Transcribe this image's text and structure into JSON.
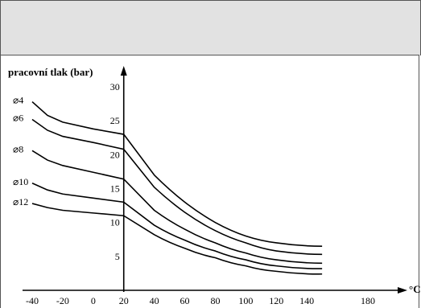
{
  "chart_data": {
    "type": "line",
    "ylabel": "pracovní tlak (bar)",
    "xlabel": "°C",
    "x_ticks": [
      -40,
      -20,
      0,
      20,
      40,
      60,
      80,
      100,
      120,
      140,
      180
    ],
    "y_ticks": [
      5,
      10,
      15,
      20,
      25,
      30
    ],
    "xlim": [
      -40,
      180
    ],
    "ylim": [
      0,
      30
    ],
    "series": [
      {
        "name": "⌀4",
        "points": [
          [
            -40,
            27.8
          ],
          [
            -30,
            25.8
          ],
          [
            -20,
            24.8
          ],
          [
            0,
            23.8
          ],
          [
            20,
            23.0
          ],
          [
            40,
            17.0
          ],
          [
            60,
            13.0
          ],
          [
            80,
            10.0
          ],
          [
            100,
            8.0
          ],
          [
            120,
            7.0
          ],
          [
            150,
            6.5
          ]
        ]
      },
      {
        "name": "⌀6",
        "points": [
          [
            -40,
            25.2
          ],
          [
            -30,
            23.6
          ],
          [
            -20,
            22.7
          ],
          [
            0,
            21.8
          ],
          [
            20,
            20.8
          ],
          [
            40,
            15.2
          ],
          [
            60,
            11.5
          ],
          [
            80,
            8.8
          ],
          [
            100,
            7.0
          ],
          [
            120,
            5.8
          ],
          [
            150,
            5.3
          ]
        ]
      },
      {
        "name": "⌀8",
        "points": [
          [
            -40,
            20.6
          ],
          [
            -30,
            19.2
          ],
          [
            -20,
            18.4
          ],
          [
            0,
            17.4
          ],
          [
            20,
            16.4
          ],
          [
            40,
            11.8
          ],
          [
            60,
            9.0
          ],
          [
            80,
            7.0
          ],
          [
            100,
            5.5
          ],
          [
            120,
            4.5
          ],
          [
            150,
            4.0
          ]
        ]
      },
      {
        "name": "⌀10",
        "points": [
          [
            -40,
            15.8
          ],
          [
            -30,
            14.8
          ],
          [
            -20,
            14.2
          ],
          [
            0,
            13.6
          ],
          [
            20,
            13.0
          ],
          [
            40,
            9.6
          ],
          [
            60,
            7.4
          ],
          [
            80,
            5.8
          ],
          [
            100,
            4.5
          ],
          [
            120,
            3.6
          ],
          [
            150,
            3.2
          ]
        ]
      },
      {
        "name": "⌀12",
        "points": [
          [
            -40,
            12.8
          ],
          [
            -30,
            12.2
          ],
          [
            -20,
            11.8
          ],
          [
            0,
            11.4
          ],
          [
            20,
            11.0
          ],
          [
            40,
            8.2
          ],
          [
            60,
            6.2
          ],
          [
            80,
            4.8
          ],
          [
            100,
            3.6
          ],
          [
            120,
            2.8
          ],
          [
            150,
            2.4
          ]
        ]
      }
    ]
  }
}
